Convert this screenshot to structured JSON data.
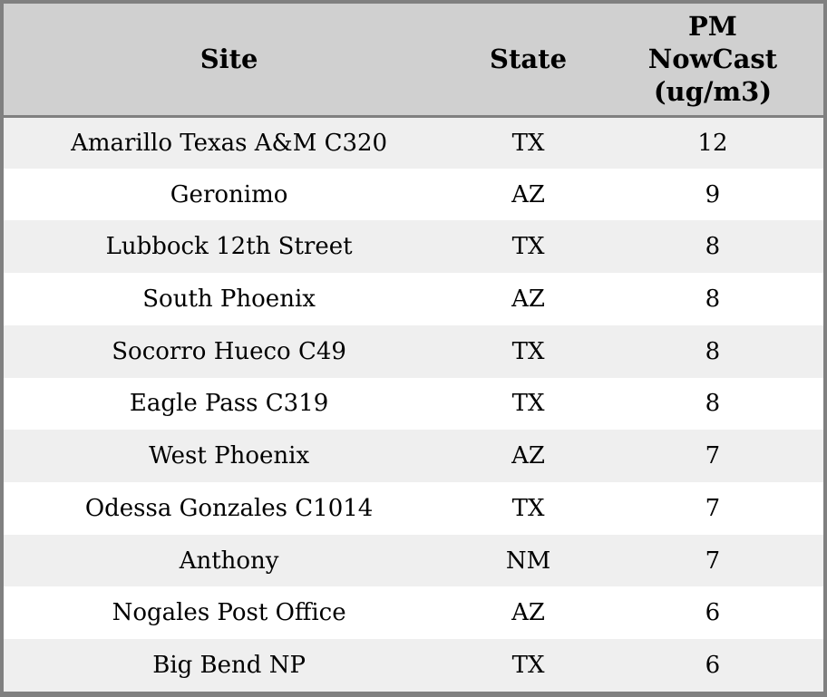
{
  "chart_data": {
    "type": "table",
    "columns": [
      {
        "field": "site",
        "label": "Site"
      },
      {
        "field": "state",
        "label": "State"
      },
      {
        "field": "pm",
        "label": "PM\nNowCast\n(ug/m3)"
      }
    ],
    "rows": [
      {
        "site": "Amarillo Texas A&M C320",
        "state": "TX",
        "pm": 12
      },
      {
        "site": "Geronimo",
        "state": "AZ",
        "pm": 9
      },
      {
        "site": "Lubbock 12th Street",
        "state": "TX",
        "pm": 8
      },
      {
        "site": "South Phoenix",
        "state": "AZ",
        "pm": 8
      },
      {
        "site": "Socorro Hueco C49",
        "state": "TX",
        "pm": 8
      },
      {
        "site": "Eagle Pass C319",
        "state": "TX",
        "pm": 8
      },
      {
        "site": "West Phoenix",
        "state": "AZ",
        "pm": 7
      },
      {
        "site": "Odessa Gonzales C1014",
        "state": "TX",
        "pm": 7
      },
      {
        "site": "Anthony",
        "state": "NM",
        "pm": 7
      },
      {
        "site": "Nogales Post Office",
        "state": "AZ",
        "pm": 6
      },
      {
        "site": "Big Bend NP",
        "state": "TX",
        "pm": 6
      }
    ]
  },
  "colors": {
    "border": "#808080",
    "header_bg": "#d0d0d0",
    "row_odd": "#efefef",
    "row_even": "#ffffff",
    "text": "#000000"
  }
}
